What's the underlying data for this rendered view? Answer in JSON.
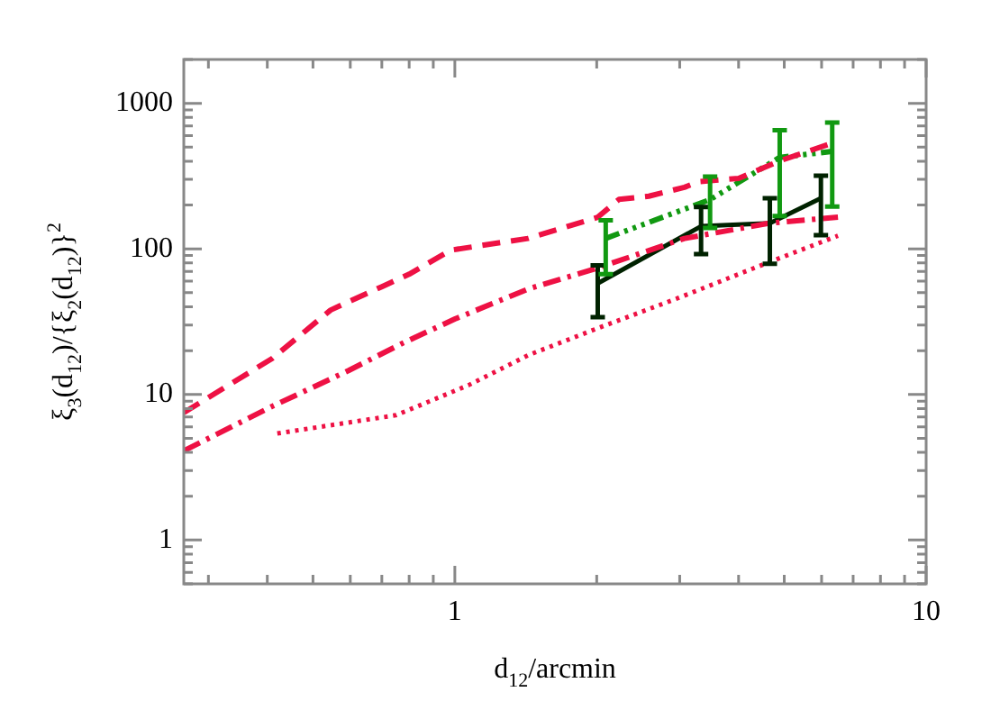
{
  "chart_data": {
    "type": "line",
    "xlabel": "d$_{12}$/arcmin",
    "ylabel": "ξ$_{3}$(d$_{12}$)/{ξ$_{2}$(d$_{12}$)}$^{2}$",
    "log": "xy",
    "grid": false,
    "legend": false,
    "marker": "none",
    "xlim": [
      0.266,
      10
    ],
    "ylim": [
      0.5,
      2000
    ],
    "xticks": [
      {
        "value": 0.3,
        "label": null
      },
      {
        "value": 0.4,
        "label": null
      },
      {
        "value": 0.5,
        "label": null
      },
      {
        "value": 0.6,
        "label": null
      },
      {
        "value": 0.7,
        "label": null
      },
      {
        "value": 0.8,
        "label": null
      },
      {
        "value": 0.9,
        "label": null
      },
      1,
      {
        "value": 2,
        "label": null
      },
      {
        "value": 3,
        "label": null
      },
      {
        "value": 4,
        "label": null
      },
      {
        "value": 5,
        "label": null
      },
      {
        "value": 6,
        "label": null
      },
      {
        "value": 7,
        "label": null
      },
      {
        "value": 8,
        "label": null
      },
      {
        "value": 9,
        "label": null
      },
      10
    ],
    "yticks": [
      {
        "value": 0.5,
        "label": null
      },
      {
        "value": 0.6,
        "label": null
      },
      {
        "value": 0.7,
        "label": null
      },
      {
        "value": 0.8,
        "label": null
      },
      {
        "value": 0.9,
        "label": null
      },
      1,
      {
        "value": 2,
        "label": null
      },
      {
        "value": 3,
        "label": null
      },
      {
        "value": 4,
        "label": null
      },
      {
        "value": 5,
        "label": null
      },
      {
        "value": 6,
        "label": null
      },
      {
        "value": 7,
        "label": null
      },
      {
        "value": 8,
        "label": null
      },
      {
        "value": 9,
        "label": null
      },
      10,
      {
        "value": 20,
        "label": null
      },
      {
        "value": 30,
        "label": null
      },
      {
        "value": 40,
        "label": null
      },
      {
        "value": 50,
        "label": null
      },
      {
        "value": 60,
        "label": null
      },
      {
        "value": 70,
        "label": null
      },
      {
        "value": 80,
        "label": null
      },
      {
        "value": 90,
        "label": null
      },
      100,
      {
        "value": 200,
        "label": null
      },
      {
        "value": 300,
        "label": null
      },
      {
        "value": 400,
        "label": null
      },
      {
        "value": 500,
        "label": null
      },
      {
        "value": 600,
        "label": null
      },
      {
        "value": 700,
        "label": null
      },
      {
        "value": 800,
        "label": null
      },
      {
        "value": 900,
        "label": null
      },
      1000,
      {
        "value": 2000,
        "label": null
      }
    ],
    "series": [
      {
        "color": "#ee1144",
        "line_style": "dashed",
        "x": [
          0.266,
          0.41,
          0.545,
          0.7,
          0.8,
          0.98,
          1.43,
          2.01,
          2.23,
          2.58,
          3.07,
          3.3,
          4.0,
          4.92,
          6.4
        ],
        "values": [
          7.5,
          17.7,
          38,
          55,
          67,
          98,
          118,
          165,
          219,
          230,
          265,
          290,
          305,
          405,
          540
        ]
      },
      {
        "color": "#ee1144",
        "line_style": "dashdot",
        "x": [
          0.266,
          0.41,
          0.595,
          0.775,
          1.0,
          1.43,
          2.01,
          3.07,
          4.64,
          6.5
        ],
        "values": [
          4.1,
          8.3,
          14.6,
          22.5,
          33,
          53,
          74,
          118,
          150,
          165
        ]
      },
      {
        "color": "#ee1144",
        "line_style": "dotted",
        "x": [
          0.42,
          0.75,
          1.07,
          1.43,
          2.01,
          2.98,
          4.64,
          6.5
        ],
        "values": [
          5.4,
          7.2,
          11.6,
          18.6,
          28.5,
          46,
          81,
          123
        ]
      },
      {
        "color": "#002200",
        "line_style": "solid",
        "x": [
          2.01,
          3.33,
          4.66,
          5.98
        ],
        "values": [
          58,
          143,
          150,
          223
        ],
        "errors": [
          [
            34,
            77
          ],
          [
            92,
            194
          ],
          [
            79,
            223
          ],
          [
            124,
            318
          ]
        ]
      },
      {
        "color": "#119911",
        "line_style": "dashdotdot",
        "x": [
          2.09,
          3.48,
          4.89,
          6.32
        ],
        "values": [
          118,
          218,
          425,
          467
        ],
        "errors": [
          [
            67,
            157
          ],
          [
            139,
            314
          ],
          [
            168,
            653
          ],
          [
            195,
            738
          ]
        ]
      }
    ]
  }
}
